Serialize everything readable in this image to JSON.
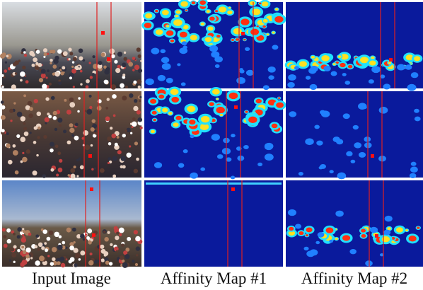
{
  "captions": [
    "Input Image",
    "Affinity Map #1",
    "Affinity Map #2"
  ]
}
